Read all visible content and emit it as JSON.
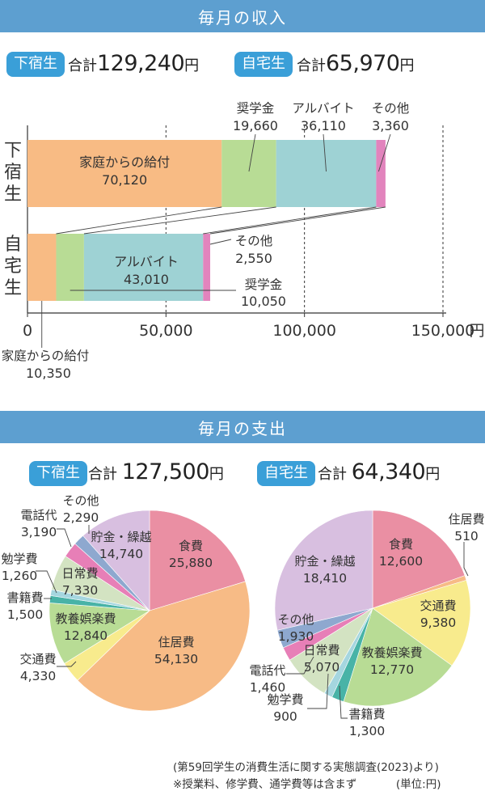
{
  "income": {
    "heading": "毎月の収入",
    "groups": [
      {
        "badge": "下宿生",
        "total_prefix": "合計",
        "total_value": "129,240",
        "total_unit": "円"
      },
      {
        "badge": "自宅生",
        "total_prefix": "合計",
        "total_value": "65,970",
        "total_unit": "円"
      }
    ]
  },
  "expense": {
    "heading": "毎月の支出",
    "groups": [
      {
        "badge": "下宿生",
        "total_prefix": "合計",
        "total_value": "127,500",
        "total_unit": "円"
      },
      {
        "badge": "自宅生",
        "total_prefix": "合計",
        "total_value": "64,340",
        "total_unit": "円"
      }
    ]
  },
  "chart_data": [
    {
      "type": "bar",
      "orientation": "horizontal",
      "stacked": true,
      "categories": [
        "下宿生",
        "自宅生"
      ],
      "category_labels": [
        "下\n宿\n生",
        "自\n宅\n生"
      ],
      "series": [
        {
          "name": "家庭からの給付",
          "values": [
            70120,
            10350
          ],
          "color": "#f8bb84"
        },
        {
          "name": "奨学金",
          "values": [
            19660,
            10050
          ],
          "color": "#b8dc95"
        },
        {
          "name": "アルバイト",
          "values": [
            36110,
            43010
          ],
          "color": "#9ed2d4"
        },
        {
          "name": "その他",
          "values": [
            3360,
            2550
          ],
          "color": "#e284bd"
        }
      ],
      "value_labels": {
        "下宿生": [
          "70,120",
          "19,660",
          "36,110",
          "3,360"
        ],
        "自宅生": [
          "10,350",
          "10,050",
          "43,010",
          "2,550"
        ]
      },
      "xlim": [
        0,
        150000
      ],
      "xticks": [
        "0",
        "50,000",
        "100,000",
        "150,000"
      ],
      "x_unit": "円",
      "grid": "dashed vertical at 50,000 / 100,000 / 150,000"
    },
    {
      "type": "pie",
      "title": "下宿生",
      "slices": [
        {
          "label": "食費",
          "value": 25880,
          "value_text": "25,880",
          "color": "#ea8fa3"
        },
        {
          "label": "住居費",
          "value": 54130,
          "value_text": "54,130",
          "color": "#f7bb86"
        },
        {
          "label": "交通費",
          "value": 4330,
          "value_text": "4,330",
          "color": "#f8eb8d"
        },
        {
          "label": "教養娯楽費",
          "value": 12840,
          "value_text": "12,840",
          "color": "#b8dc95"
        },
        {
          "label": "書籍費",
          "value": 1500,
          "value_text": "1,500",
          "color": "#48b3a7"
        },
        {
          "label": "勉学費",
          "value": 1260,
          "value_text": "1,260",
          "color": "#a5d6df"
        },
        {
          "label": "日常費",
          "value": 7330,
          "value_text": "7,330",
          "color": "#d3e3c2"
        },
        {
          "label": "電話代",
          "value": 3190,
          "value_text": "3,190",
          "color": "#e77fb7"
        },
        {
          "label": "その他",
          "value": 2290,
          "value_text": "2,290",
          "color": "#8ea8cf"
        },
        {
          "label": "貯金・繰越",
          "value": 14740,
          "value_text": "14,740",
          "color": "#d8bfe0"
        }
      ]
    },
    {
      "type": "pie",
      "title": "自宅生",
      "slices": [
        {
          "label": "食費",
          "value": 12600,
          "value_text": "12,600",
          "color": "#ea8fa3"
        },
        {
          "label": "住居費",
          "value": 510,
          "value_text": "510",
          "color": "#f7bb86"
        },
        {
          "label": "交通費",
          "value": 9380,
          "value_text": "9,380",
          "color": "#f8eb8d"
        },
        {
          "label": "教養娯楽費",
          "value": 12770,
          "value_text": "12,770",
          "color": "#b8dc95"
        },
        {
          "label": "書籍費",
          "value": 1300,
          "value_text": "1,300",
          "color": "#48b3a7"
        },
        {
          "label": "勉学費",
          "value": 900,
          "value_text": "900",
          "color": "#a5d6df"
        },
        {
          "label": "日常費",
          "value": 5070,
          "value_text": "5,070",
          "color": "#d3e3c2"
        },
        {
          "label": "電話代",
          "value": 1460,
          "value_text": "1,460",
          "color": "#e77fb7"
        },
        {
          "label": "その他",
          "value": 1930,
          "value_text": "1,930",
          "color": "#8ea8cf"
        },
        {
          "label": "貯金・繰越",
          "value": 18410,
          "value_text": "18,410",
          "color": "#d8bfe0"
        }
      ]
    }
  ],
  "footnotes": {
    "source": "(第59回学生の消費生活に関する実態調査(2023)より)",
    "note": "※授業料、修学費、通学費等は含まず",
    "unit": "(単位:円)"
  }
}
